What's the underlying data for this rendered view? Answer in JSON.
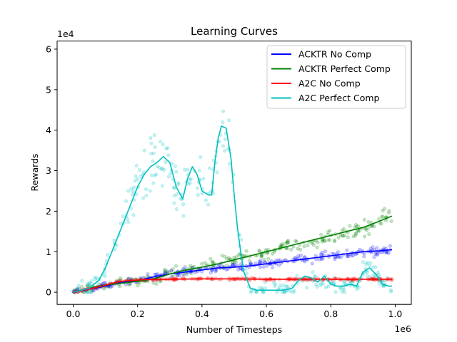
{
  "chart_data": {
    "type": "line",
    "title": "Learning Curves",
    "xlabel": "Number of Timesteps",
    "ylabel": "Rewards",
    "x_offset_text": "1e6",
    "y_offset_text": "1e4",
    "xlim": [
      -0.05,
      1.05
    ],
    "ylim": [
      -0.3,
      6.2
    ],
    "x_ticks": [
      0.0,
      0.2,
      0.4,
      0.6,
      0.8,
      1.0
    ],
    "x_tick_labels": [
      "0.0",
      "0.2",
      "0.4",
      "0.6",
      "0.8",
      "1.0"
    ],
    "y_ticks": [
      0,
      1,
      2,
      3,
      4,
      5,
      6
    ],
    "y_tick_labels": [
      "0",
      "1",
      "2",
      "3",
      "4",
      "5",
      "6"
    ],
    "grid": false,
    "legend_position": "top-right",
    "series": [
      {
        "name": "ACKTR No Comp",
        "color": "#0000ff",
        "x": [
          0.0,
          0.05,
          0.1,
          0.15,
          0.2,
          0.25,
          0.3,
          0.35,
          0.4,
          0.45,
          0.5,
          0.55,
          0.6,
          0.65,
          0.7,
          0.75,
          0.8,
          0.85,
          0.9,
          0.95,
          0.99
        ],
        "y": [
          0.0,
          0.08,
          0.15,
          0.25,
          0.28,
          0.38,
          0.45,
          0.5,
          0.55,
          0.6,
          0.62,
          0.65,
          0.7,
          0.75,
          0.8,
          0.85,
          0.9,
          0.95,
          1.0,
          1.02,
          1.05
        ]
      },
      {
        "name": "ACKTR Perfect Comp",
        "color": "#008000",
        "x": [
          0.0,
          0.05,
          0.1,
          0.15,
          0.2,
          0.25,
          0.3,
          0.35,
          0.4,
          0.45,
          0.5,
          0.55,
          0.6,
          0.65,
          0.7,
          0.75,
          0.8,
          0.85,
          0.9,
          0.95,
          0.99
        ],
        "y": [
          0.0,
          0.1,
          0.18,
          0.22,
          0.27,
          0.33,
          0.45,
          0.55,
          0.62,
          0.7,
          0.8,
          0.9,
          1.0,
          1.1,
          1.2,
          1.3,
          1.4,
          1.5,
          1.6,
          1.75,
          1.88
        ]
      },
      {
        "name": "A2C No Comp",
        "color": "#ff0000",
        "x": [
          0.0,
          0.03,
          0.06,
          0.09,
          0.12,
          0.15,
          0.18,
          0.22,
          0.3,
          0.4,
          0.5,
          0.6,
          0.7,
          0.8,
          0.9,
          0.99
        ],
        "y": [
          0.0,
          0.05,
          0.1,
          0.15,
          0.22,
          0.27,
          0.29,
          0.31,
          0.32,
          0.33,
          0.33,
          0.32,
          0.32,
          0.32,
          0.32,
          0.32
        ]
      },
      {
        "name": "A2C Perfect Comp",
        "color": "#00bfbf",
        "x": [
          0.0,
          0.05,
          0.08,
          0.1,
          0.12,
          0.14,
          0.16,
          0.18,
          0.2,
          0.22,
          0.24,
          0.26,
          0.28,
          0.3,
          0.32,
          0.34,
          0.355,
          0.37,
          0.385,
          0.4,
          0.42,
          0.43,
          0.44,
          0.45,
          0.46,
          0.475,
          0.49,
          0.5,
          0.51,
          0.52,
          0.53,
          0.55,
          0.57,
          0.6,
          0.65,
          0.68,
          0.7,
          0.72,
          0.74,
          0.76,
          0.78,
          0.8,
          0.82,
          0.84,
          0.86,
          0.88,
          0.9,
          0.92,
          0.94,
          0.96,
          0.98,
          0.99
        ],
        "y": [
          0.0,
          0.1,
          0.3,
          0.6,
          1.0,
          1.4,
          1.8,
          2.2,
          2.6,
          2.9,
          3.1,
          3.2,
          3.35,
          3.2,
          2.6,
          2.3,
          2.8,
          3.1,
          2.9,
          2.5,
          2.4,
          2.4,
          3.2,
          3.8,
          4.1,
          4.05,
          3.3,
          2.4,
          1.6,
          1.0,
          0.5,
          0.1,
          0.05,
          0.05,
          0.05,
          0.1,
          0.3,
          0.4,
          0.35,
          0.25,
          0.4,
          0.2,
          0.15,
          0.15,
          0.2,
          0.15,
          0.5,
          0.6,
          0.45,
          0.2,
          0.15,
          0.15
        ]
      }
    ]
  }
}
